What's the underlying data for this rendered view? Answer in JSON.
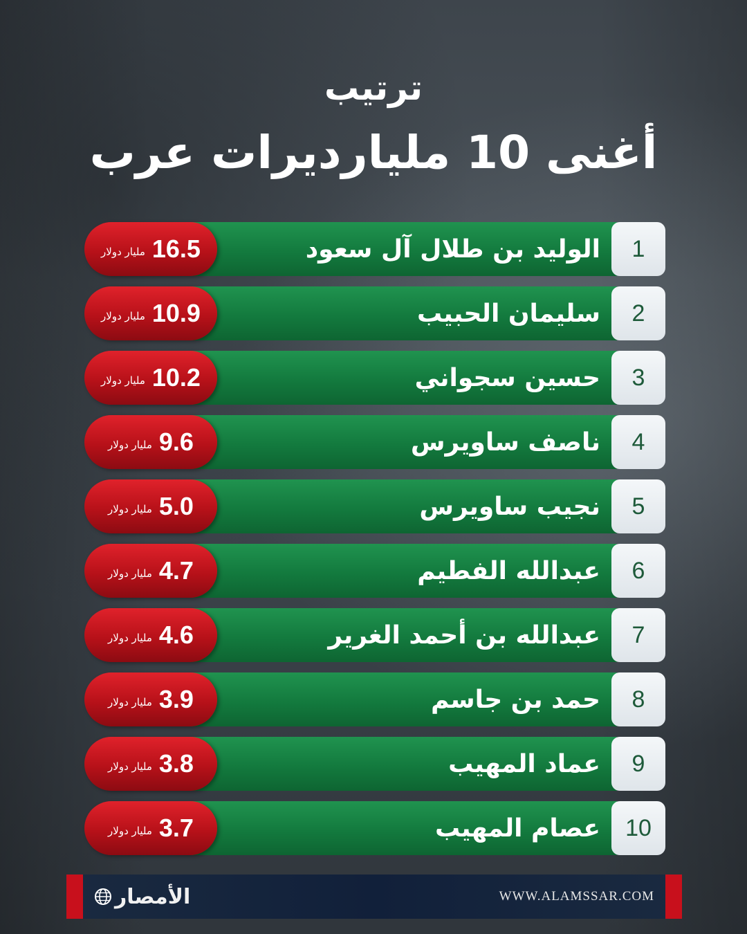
{
  "header": {
    "line1": "ترتيب",
    "line2": "أغنى 10 مليارديرات عرب"
  },
  "unit_label": "مليار دولار",
  "rows": [
    {
      "rank": "1",
      "name": "الوليد بن طلال آل سعود",
      "value": "16.5"
    },
    {
      "rank": "2",
      "name": "سليمان الحبيب",
      "value": "10.9"
    },
    {
      "rank": "3",
      "name": "حسين سجواني",
      "value": "10.2"
    },
    {
      "rank": "4",
      "name": "ناصف ساويرس",
      "value": "9.6"
    },
    {
      "rank": "5",
      "name": "نجيب ساويرس",
      "value": "5.0"
    },
    {
      "rank": "6",
      "name": "عبدالله الفطيم",
      "value": "4.7"
    },
    {
      "rank": "7",
      "name": "عبدالله بن أحمد الغرير",
      "value": "4.6"
    },
    {
      "rank": "8",
      "name": "حمد بن جاسم",
      "value": "3.9"
    },
    {
      "rank": "9",
      "name": "عماد المهيب",
      "value": "3.8"
    },
    {
      "rank": "10",
      "name": "عصام المهيب",
      "value": "3.7"
    }
  ],
  "footer": {
    "logo_text": "الأمصار",
    "url": "WWW.ALAMSSAR.COM"
  },
  "colors": {
    "row_green": "#137a3e",
    "value_red": "#c8101c",
    "rank_box": "#eef2f5",
    "rank_text": "#1e5a3a"
  }
}
